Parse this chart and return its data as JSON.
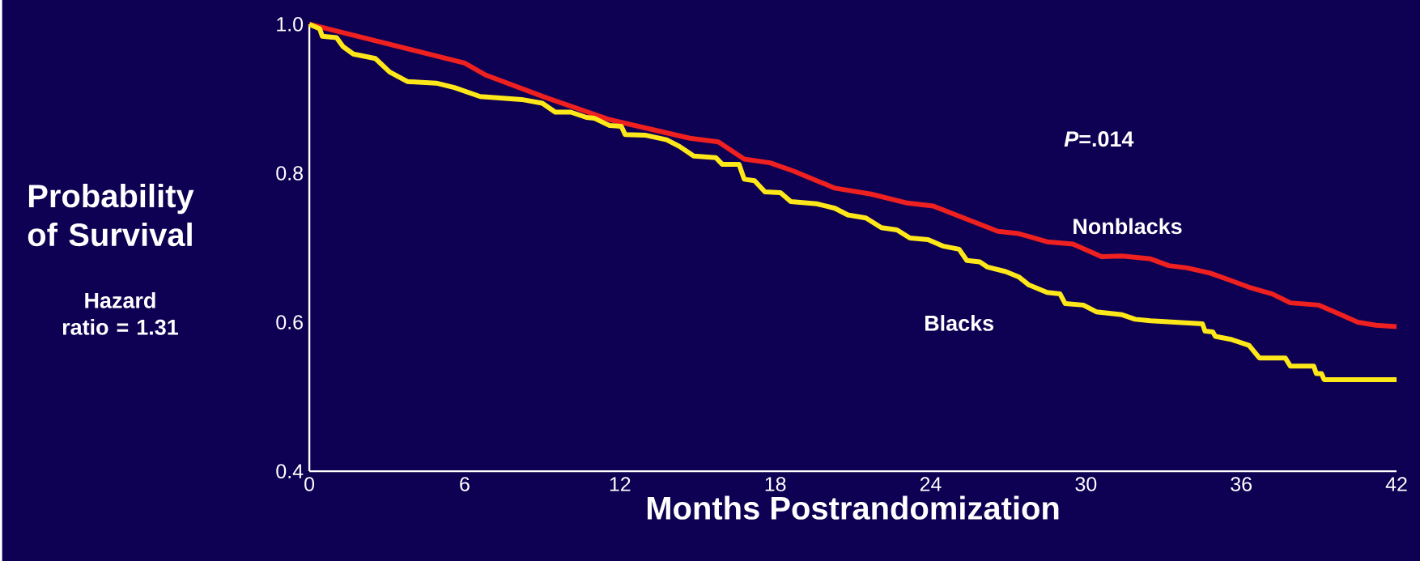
{
  "chart_data": {
    "type": "line",
    "xlabel": "Months Postrandomization",
    "ylabel": "Probability of Survival",
    "annotations": [
      "*P*=.014",
      "Hazard ratio = 1.31"
    ],
    "xlim": [
      0,
      42
    ],
    "xticks": [
      0,
      6,
      12,
      18,
      24,
      30,
      36,
      42
    ],
    "ylim": [
      0.4,
      1.0
    ],
    "yticks": [
      0.4,
      0.6,
      0.8,
      {
        "value": 1,
        "label": "1.0"
      }
    ],
    "grid": false,
    "legend": false,
    "marker": "none",
    "line_style": "solid",
    "series": [
      {
        "name": "Nonblacks",
        "color": "#ee2020",
        "x": [
          0,
          6,
          6.8,
          9.1,
          11.6,
          14.7,
          15.8,
          16.8,
          17.8,
          18.7,
          20.3,
          21.7,
          23.1,
          24.1,
          25.2,
          26.6,
          27.4,
          28.5,
          29.5,
          30.6,
          31.4,
          32.5,
          33.2,
          33.9,
          34.8,
          35.6,
          36.3,
          37.2,
          37.9,
          39,
          39.8,
          40.5,
          41.2,
          42
        ],
        "values": [
          1.0,
          0.948,
          0.932,
          0.902,
          0.872,
          0.847,
          0.842,
          0.819,
          0.814,
          0.803,
          0.78,
          0.772,
          0.76,
          0.756,
          0.741,
          0.722,
          0.719,
          0.708,
          0.705,
          0.688,
          0.689,
          0.685,
          0.676,
          0.673,
          0.666,
          0.656,
          0.647,
          0.638,
          0.626,
          0.623,
          0.611,
          0.6,
          0.596,
          0.594
        ]
      },
      {
        "name": "Blacks",
        "color": "#ffe81a",
        "x": [
          0,
          0.4,
          0.5,
          1.05,
          1.3,
          1.7,
          2.55,
          3.1,
          3.8,
          4.9,
          5.6,
          6.6,
          8.2,
          9.0,
          9.5,
          10.1,
          10.7,
          11,
          11.6,
          12.05,
          12.2,
          13,
          13.8,
          14.3,
          14.85,
          15.7,
          15.95,
          16.6,
          16.8,
          17.2,
          17.6,
          18.2,
          18.6,
          19.6,
          20.3,
          20.8,
          21.5,
          22.1,
          22.7,
          23.2,
          23.9,
          24.5,
          25.1,
          25.4,
          25.9,
          26.2,
          26.9,
          27.4,
          27.8,
          28.5,
          29,
          29.2,
          29.9,
          30.4,
          31.4,
          31.9,
          32.5,
          34.5,
          34.6,
          34.9,
          35,
          35.6,
          36.3,
          36.7,
          37.7,
          37.9,
          38.8,
          38.9,
          39.1,
          39.2,
          42
        ],
        "values": [
          1.0,
          0.994,
          0.984,
          0.982,
          0.97,
          0.96,
          0.954,
          0.936,
          0.923,
          0.921,
          0.915,
          0.903,
          0.899,
          0.894,
          0.882,
          0.882,
          0.875,
          0.874,
          0.864,
          0.863,
          0.852,
          0.851,
          0.845,
          0.836,
          0.823,
          0.821,
          0.812,
          0.812,
          0.792,
          0.79,
          0.775,
          0.774,
          0.762,
          0.759,
          0.753,
          0.744,
          0.74,
          0.727,
          0.724,
          0.713,
          0.711,
          0.702,
          0.698,
          0.683,
          0.681,
          0.674,
          0.668,
          0.661,
          0.65,
          0.64,
          0.638,
          0.625,
          0.623,
          0.614,
          0.61,
          0.604,
          0.602,
          0.598,
          0.588,
          0.587,
          0.581,
          0.577,
          0.569,
          0.552,
          0.552,
          0.541,
          0.541,
          0.531,
          0.531,
          0.523,
          0.523
        ]
      }
    ]
  }
}
